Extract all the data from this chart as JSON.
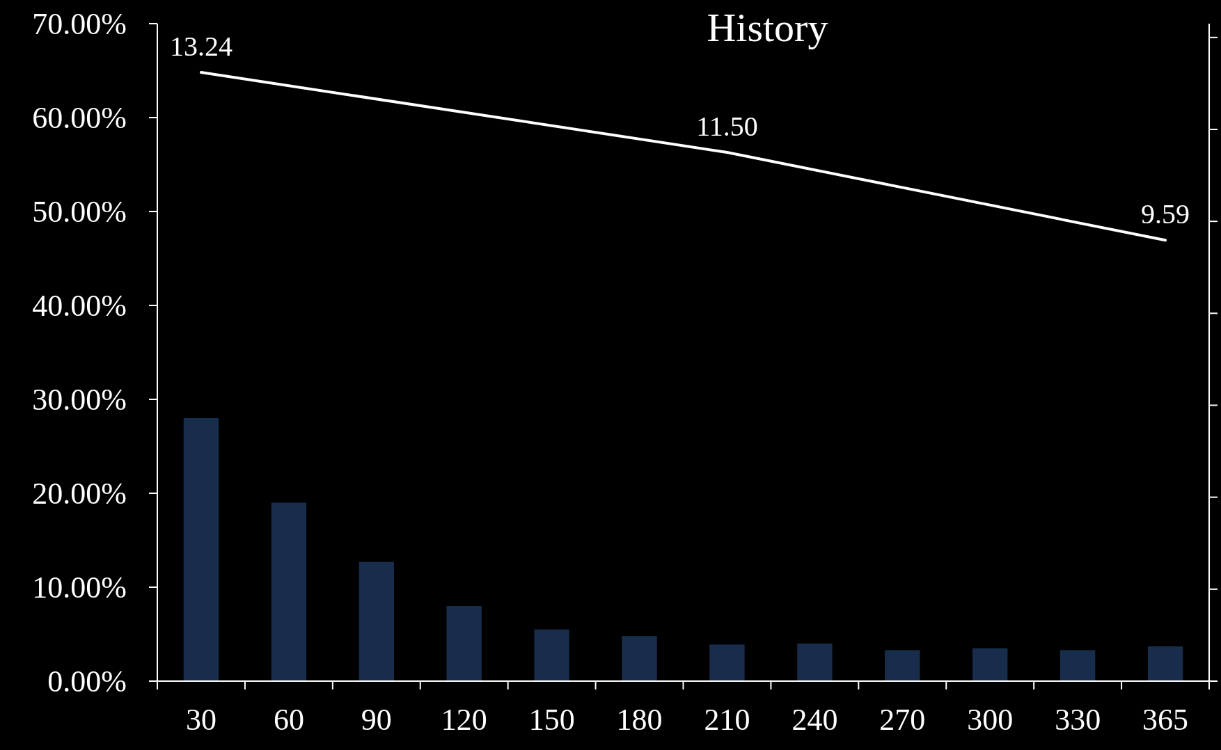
{
  "chart_data": {
    "type": "bar",
    "title": "History",
    "categories": [
      "30",
      "60",
      "90",
      "120",
      "150",
      "180",
      "210",
      "240",
      "270",
      "300",
      "330",
      "365"
    ],
    "series": [
      {
        "color": "#172d4b",
        "values": [
          28.0,
          19.0,
          12.7,
          8.0,
          5.5,
          4.8,
          3.9,
          4.0,
          3.3,
          3.5,
          3.3,
          3.7
        ]
      },
      {
        "type": "line",
        "axis": "y2",
        "color": "#ffffff",
        "x": [
          "30",
          "210",
          "365"
        ],
        "values": [
          13.24,
          11.5,
          9.59
        ],
        "value_labels": [
          "13.24",
          "11.50",
          "9.59"
        ]
      }
    ],
    "ylim": [
      0,
      70
    ],
    "yticks": [
      {
        "value": 0,
        "label": "0.00%"
      },
      {
        "value": 10,
        "label": "10.00%"
      },
      {
        "value": 20,
        "label": "20.00%"
      },
      {
        "value": 30,
        "label": "30.00%"
      },
      {
        "value": 40,
        "label": "40.00%"
      },
      {
        "value": 50,
        "label": "50.00%"
      },
      {
        "value": 60,
        "label": "60.00%"
      },
      {
        "value": 70,
        "label": "70.00%"
      }
    ],
    "y2lim": [
      0,
      14.3
    ],
    "y2ticks": [
      {
        "value": 0,
        "label": null
      },
      {
        "value": 2,
        "label": null
      },
      {
        "value": 4,
        "label": null
      },
      {
        "value": 6,
        "label": null
      },
      {
        "value": 8,
        "label": null
      },
      {
        "value": 10,
        "label": null
      },
      {
        "value": 12,
        "label": null
      },
      {
        "value": 14,
        "label": null
      }
    ],
    "grid": false
  }
}
